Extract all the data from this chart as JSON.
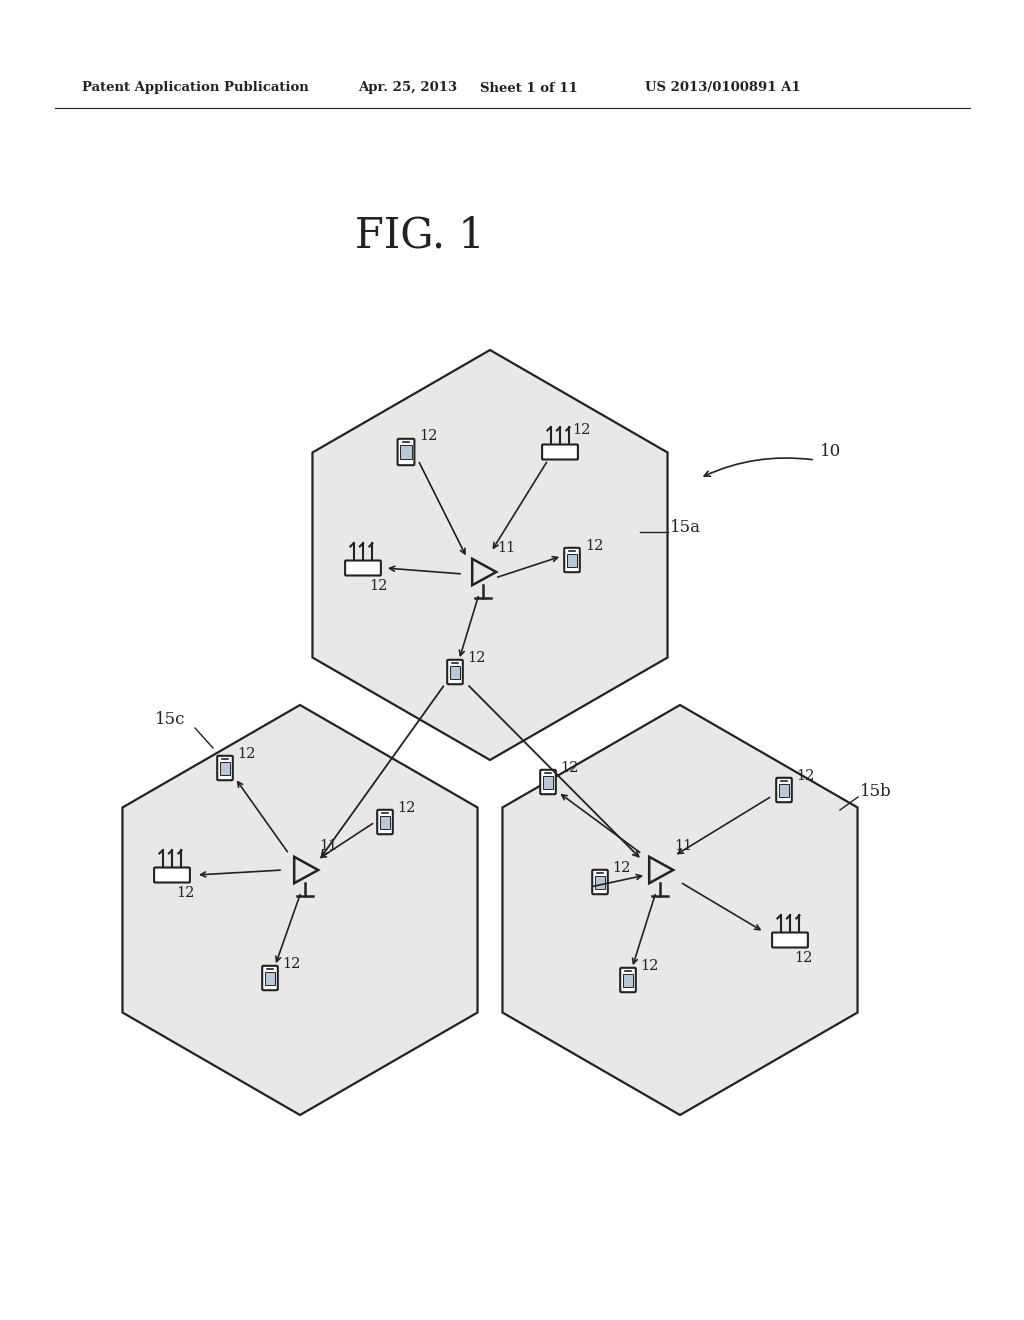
{
  "bg_color": "#ffffff",
  "line_color": "#222222",
  "header_text": "Patent Application Publication",
  "header_date": "Apr. 25, 2013",
  "header_sheet": "Sheet 1 of 11",
  "header_patent": "US 2013/0100891 A1",
  "fig_title": "FIG. 1",
  "label_10": "10",
  "label_15a": "15a",
  "label_15b": "15b",
  "label_15c": "15c",
  "label_11": "11",
  "label_12": "12",
  "hex_fill": "#e8e8e8",
  "hex_edge": "#222222"
}
